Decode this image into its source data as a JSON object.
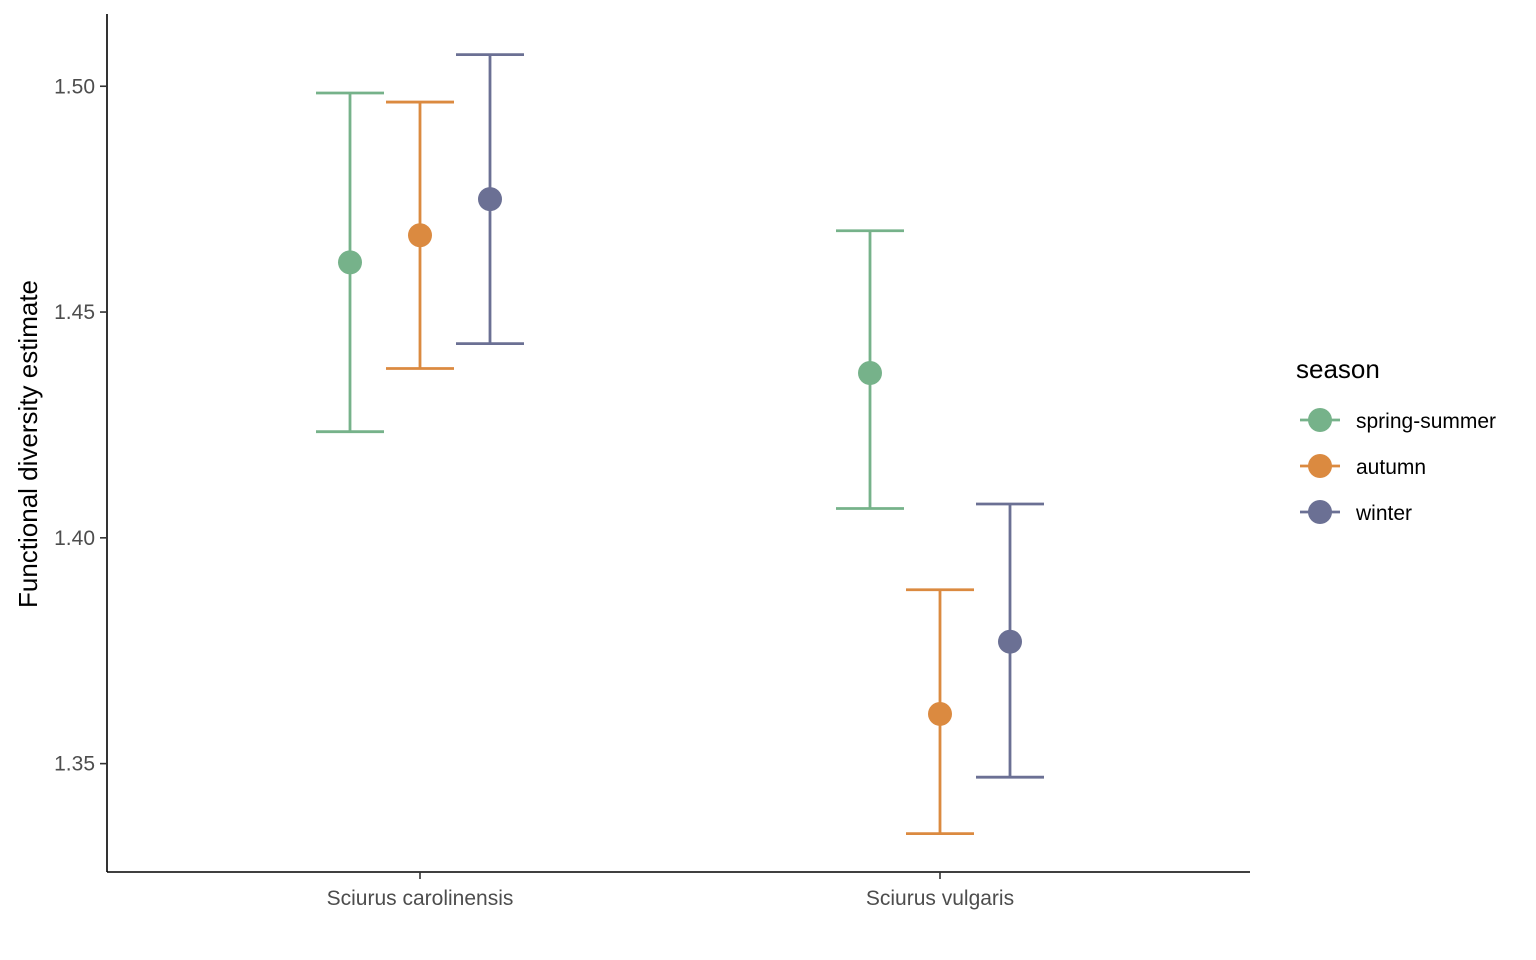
{
  "chart_data": {
    "type": "scatter",
    "subtype": "point-errorbar",
    "title": "",
    "xlabel": "",
    "ylabel": "Functional diversity estimate",
    "categories": [
      "Sciurus carolinensis",
      "Sciurus vulgaris"
    ],
    "ylim": [
      1.326,
      1.516
    ],
    "yticks": [
      1.35,
      1.4,
      1.45,
      1.5
    ],
    "ytick_labels": [
      "1.35",
      "1.40",
      "1.45",
      "1.50"
    ],
    "grid": false,
    "legend": {
      "title": "season",
      "position": "right"
    },
    "series": [
      {
        "name": "spring-summer",
        "color": "#76b28a",
        "estimate": [
          1.461,
          1.4365
        ],
        "lower": [
          1.4235,
          1.4065
        ],
        "upper": [
          1.4985,
          1.468
        ]
      },
      {
        "name": "autumn",
        "color": "#db8a40",
        "estimate": [
          1.467,
          1.361
        ],
        "lower": [
          1.4375,
          1.3345
        ],
        "upper": [
          1.4965,
          1.3885
        ]
      },
      {
        "name": "winter",
        "color": "#6b7094",
        "estimate": [
          1.475,
          1.377
        ],
        "lower": [
          1.443,
          1.347
        ],
        "upper": [
          1.507,
          1.4075
        ]
      }
    ]
  }
}
